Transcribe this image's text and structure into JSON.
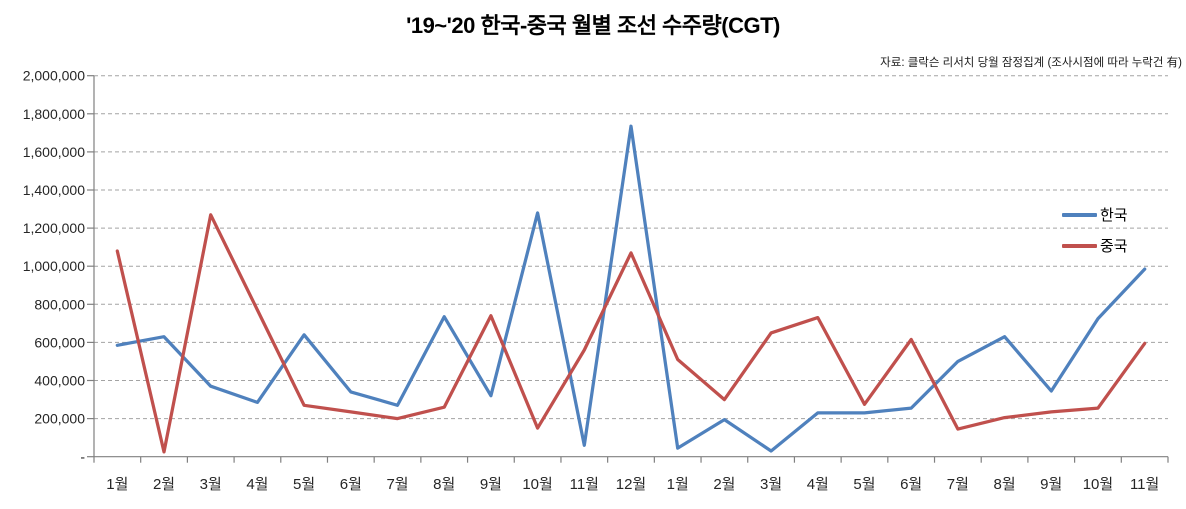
{
  "chart_data": {
    "type": "line",
    "title": "'19~'20 한국-중국 월별 조선 수주량(CGT)",
    "source_note": "자료: 클락슨 리서치 당월 잠정집계 (조사시점에 따라 누락건 有)",
    "xlabel": "",
    "ylabel": "",
    "categories": [
      "1월",
      "2월",
      "3월",
      "4월",
      "5월",
      "6월",
      "7월",
      "8월",
      "9월",
      "10월",
      "11월",
      "12월",
      "1월",
      "2월",
      "3월",
      "4월",
      "5월",
      "6월",
      "7월",
      "8월",
      "9월",
      "10월",
      "11월"
    ],
    "series": [
      {
        "name": "한국",
        "color": "#4F81BD",
        "values": [
          585000,
          630000,
          370000,
          285000,
          640000,
          340000,
          270000,
          735000,
          320000,
          1280000,
          60000,
          1735000,
          45000,
          195000,
          30000,
          230000,
          230000,
          255000,
          500000,
          630000,
          345000,
          725000,
          985000
        ]
      },
      {
        "name": "중국",
        "color": "#C0504D",
        "values": [
          1080000,
          25000,
          1270000,
          770000,
          270000,
          235000,
          200000,
          260000,
          740000,
          150000,
          560000,
          1070000,
          510000,
          300000,
          650000,
          730000,
          275000,
          615000,
          145000,
          205000,
          235000,
          255000,
          595000
        ]
      }
    ],
    "ylim": [
      0,
      2000000
    ],
    "ytick_step": 200000,
    "ytick_labels": [
      "-",
      "200,000",
      "400,000",
      "600,000",
      "800,000",
      "1,000,000",
      "1,200,000",
      "1,400,000",
      "1,600,000",
      "1,800,000",
      "2,000,000"
    ],
    "grid": "horizontal-dashed",
    "legend_position": "right",
    "colors": {
      "gridline": "#A3A3A3",
      "axis": "#808080",
      "tick_text": "#262626"
    }
  }
}
